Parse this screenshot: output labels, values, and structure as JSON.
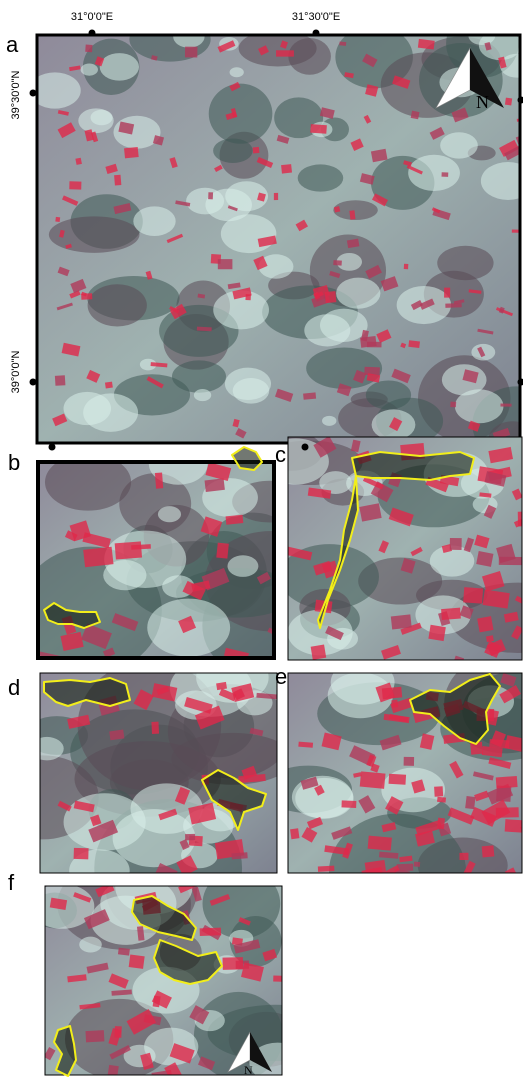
{
  "map": {
    "panels": [
      {
        "label": "a"
      },
      {
        "label": "b"
      },
      {
        "label": "c"
      },
      {
        "label": "d"
      },
      {
        "label": "e"
      },
      {
        "label": "f"
      }
    ],
    "coordinates": {
      "longitude": [
        "31°0'0\"E",
        "31°30'0\"E"
      ],
      "latitude": [
        "39°30'0\"N",
        "39°0'0\"N"
      ]
    },
    "north_arrow": "N"
  }
}
